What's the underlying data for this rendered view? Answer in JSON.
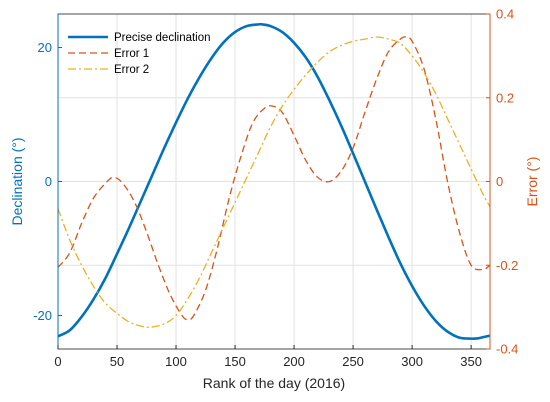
{
  "chart_data": {
    "type": "line",
    "title": "",
    "xlabel": "Rank of the day (2016)",
    "ylabel_left": "Declination (°)",
    "ylabel_right": "Error (°)",
    "xlim": [
      0,
      366
    ],
    "ylim_left": [
      -25,
      25
    ],
    "ylim_right": [
      -0.4,
      0.4
    ],
    "x_ticks": [
      0,
      50,
      100,
      150,
      200,
      250,
      300,
      350
    ],
    "x_tick_labels": [
      "0",
      "50",
      "100",
      "150",
      "200",
      "250",
      "300",
      "350"
    ],
    "y_left_ticks": [
      -20,
      0,
      20
    ],
    "y_left_tick_labels": [
      "-20",
      "0",
      "20"
    ],
    "y_right_ticks": [
      -0.4,
      -0.2,
      0,
      0.2,
      0.4
    ],
    "y_right_tick_labels": [
      "-0.4",
      "-0.2",
      "0",
      "0.2",
      "0.4"
    ],
    "grid": true,
    "legend_position": "top-left",
    "colors": {
      "left_axis": "#0072BD",
      "right_axis": "#D95319",
      "grid": "#e2e2e2",
      "frame": "#262626"
    },
    "series": [
      {
        "name": "Precise declination",
        "axis": "left",
        "style": "solid",
        "color": "#0072BD",
        "x": [
          0,
          10,
          20,
          30,
          40,
          50,
          60,
          70,
          80,
          90,
          100,
          110,
          120,
          130,
          140,
          150,
          160,
          170,
          173,
          180,
          190,
          200,
          210,
          220,
          230,
          240,
          250,
          260,
          270,
          280,
          290,
          300,
          310,
          320,
          330,
          340,
          350,
          356,
          366
        ],
        "y": [
          -23.1,
          -22.2,
          -20.2,
          -17.6,
          -14.5,
          -10.8,
          -7.0,
          -3.0,
          1.0,
          5.0,
          8.8,
          12.4,
          15.6,
          18.4,
          20.7,
          22.3,
          23.2,
          23.45,
          23.45,
          23.2,
          22.3,
          20.7,
          18.5,
          15.6,
          12.1,
          8.3,
          4.2,
          0.0,
          -4.2,
          -8.3,
          -12.2,
          -15.6,
          -18.5,
          -20.8,
          -22.4,
          -23.3,
          -23.45,
          -23.4,
          -23.0
        ]
      },
      {
        "name": "Error 1",
        "axis": "right",
        "style": "dashed",
        "color": "#D95319",
        "x": [
          0,
          10,
          20,
          30,
          40,
          47,
          55,
          65,
          75,
          85,
          95,
          105,
          110,
          115,
          125,
          135,
          145,
          155,
          165,
          175,
          182,
          190,
          200,
          210,
          220,
          230,
          240,
          250,
          260,
          270,
          280,
          290,
          295,
          300,
          310,
          320,
          330,
          340,
          350,
          360,
          366
        ],
        "y": [
          -0.205,
          -0.17,
          -0.1,
          -0.04,
          -0.005,
          0.01,
          -0.005,
          -0.05,
          -0.12,
          -0.2,
          -0.27,
          -0.32,
          -0.33,
          -0.32,
          -0.26,
          -0.16,
          -0.04,
          0.06,
          0.14,
          0.175,
          0.18,
          0.165,
          0.11,
          0.05,
          0.01,
          0.0,
          0.025,
          0.08,
          0.165,
          0.245,
          0.31,
          0.34,
          0.345,
          0.335,
          0.27,
          0.15,
          0.0,
          -0.12,
          -0.2,
          -0.21,
          -0.2
        ]
      },
      {
        "name": "Error 2",
        "axis": "right",
        "style": "dashdot",
        "color": "#EDB120",
        "x": [
          0,
          10,
          20,
          30,
          40,
          50,
          60,
          70,
          78,
          90,
          100,
          110,
          120,
          130,
          140,
          150,
          160,
          170,
          180,
          190,
          200,
          210,
          220,
          230,
          240,
          250,
          260,
          270,
          280,
          290,
          300,
          310,
          320,
          330,
          340,
          350,
          360,
          366
        ],
        "y": [
          -0.065,
          -0.14,
          -0.2,
          -0.25,
          -0.29,
          -0.315,
          -0.335,
          -0.345,
          -0.348,
          -0.34,
          -0.32,
          -0.28,
          -0.23,
          -0.17,
          -0.11,
          -0.05,
          0.01,
          0.07,
          0.13,
          0.18,
          0.22,
          0.255,
          0.285,
          0.31,
          0.325,
          0.335,
          0.34,
          0.345,
          0.34,
          0.33,
          0.3,
          0.26,
          0.21,
          0.15,
          0.09,
          0.03,
          -0.03,
          -0.06
        ]
      }
    ]
  }
}
